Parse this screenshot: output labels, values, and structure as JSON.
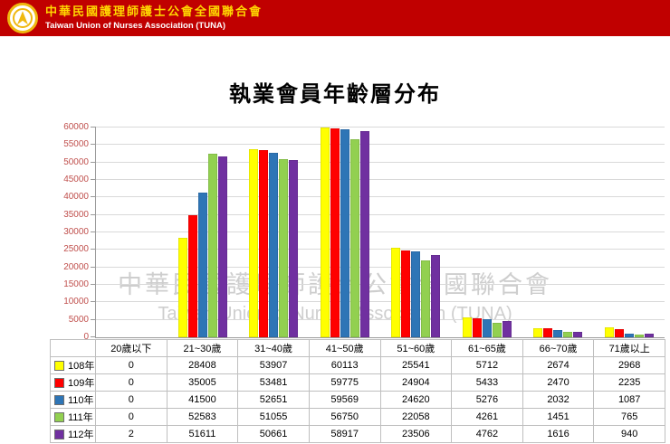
{
  "header": {
    "org_name_zh": "中華民國護理師護士公會全國聯合會",
    "org_name_en": "Taiwan Union of Nurses Association (TUNA)"
  },
  "brand": {
    "header_bg": "#C00000",
    "org_zh_color": "#FFD700",
    "logo_gold": "#EFB810"
  },
  "watermark": {
    "line1": "中華民國護理師護士公會全國聯合會",
    "line2": "Taiwan Union of Nurses Association (TUNA)"
  },
  "chart_data": {
    "type": "bar",
    "title": "執業會員年齡層分布",
    "categories": [
      "20歲以下",
      "21~30歲",
      "31~40歲",
      "41~50歲",
      "51~60歲",
      "61~65歲",
      "66~70歲",
      "71歲以上"
    ],
    "series": [
      {
        "name": "108年",
        "color": "#FFFF00",
        "values": [
          0,
          28408,
          53907,
          60113,
          25541,
          5712,
          2674,
          2968
        ]
      },
      {
        "name": "109年",
        "color": "#FF0000",
        "values": [
          0,
          35005,
          53481,
          59775,
          24904,
          5433,
          2470,
          2235
        ]
      },
      {
        "name": "110年",
        "color": "#2E75B6",
        "values": [
          0,
          41500,
          52651,
          59569,
          24620,
          5276,
          2032,
          1087
        ]
      },
      {
        "name": "111年",
        "color": "#92D050",
        "values": [
          0,
          52583,
          51055,
          56750,
          22058,
          4261,
          1451,
          765
        ]
      },
      {
        "name": "112年",
        "color": "#7030A0",
        "values": [
          2,
          51611,
          50661,
          58917,
          23506,
          4762,
          1616,
          940
        ]
      }
    ],
    "ylim": [
      0,
      60000
    ],
    "ytick_step": 5000,
    "grid": true,
    "axis_label_color": "#C0504D",
    "legend_position": "table-left-column",
    "xlabel": "",
    "ylabel": ""
  }
}
